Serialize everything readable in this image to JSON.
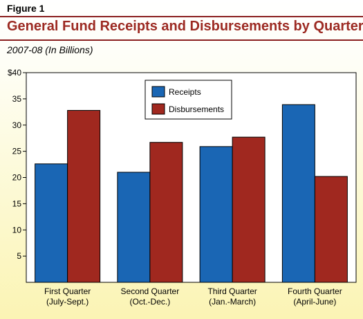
{
  "figure_label": "Figure 1",
  "chart_data": {
    "type": "bar",
    "title": "General Fund Receipts and Disbursements by Quarter",
    "subtitle": "2007-08 (In Billions)",
    "categories": [
      [
        "First Quarter",
        "(July-Sept.)"
      ],
      [
        "Second Quarter",
        "(Oct.-Dec.)"
      ],
      [
        "Third Quarter",
        "(Jan.-March)"
      ],
      [
        "Fourth Quarter",
        "(April-June)"
      ]
    ],
    "series": [
      {
        "name": "Receipts",
        "color": "#1a66b4",
        "values": [
          22.6,
          21.0,
          25.9,
          33.9
        ]
      },
      {
        "name": "Disbursements",
        "color": "#a0281f",
        "values": [
          32.8,
          26.7,
          27.7,
          20.2
        ]
      }
    ],
    "ylim": [
      0,
      40
    ],
    "yticks": [
      "$40",
      "35",
      "30",
      "25",
      "20",
      "15",
      "10",
      "5"
    ],
    "grid": false,
    "legend": "top-center"
  }
}
